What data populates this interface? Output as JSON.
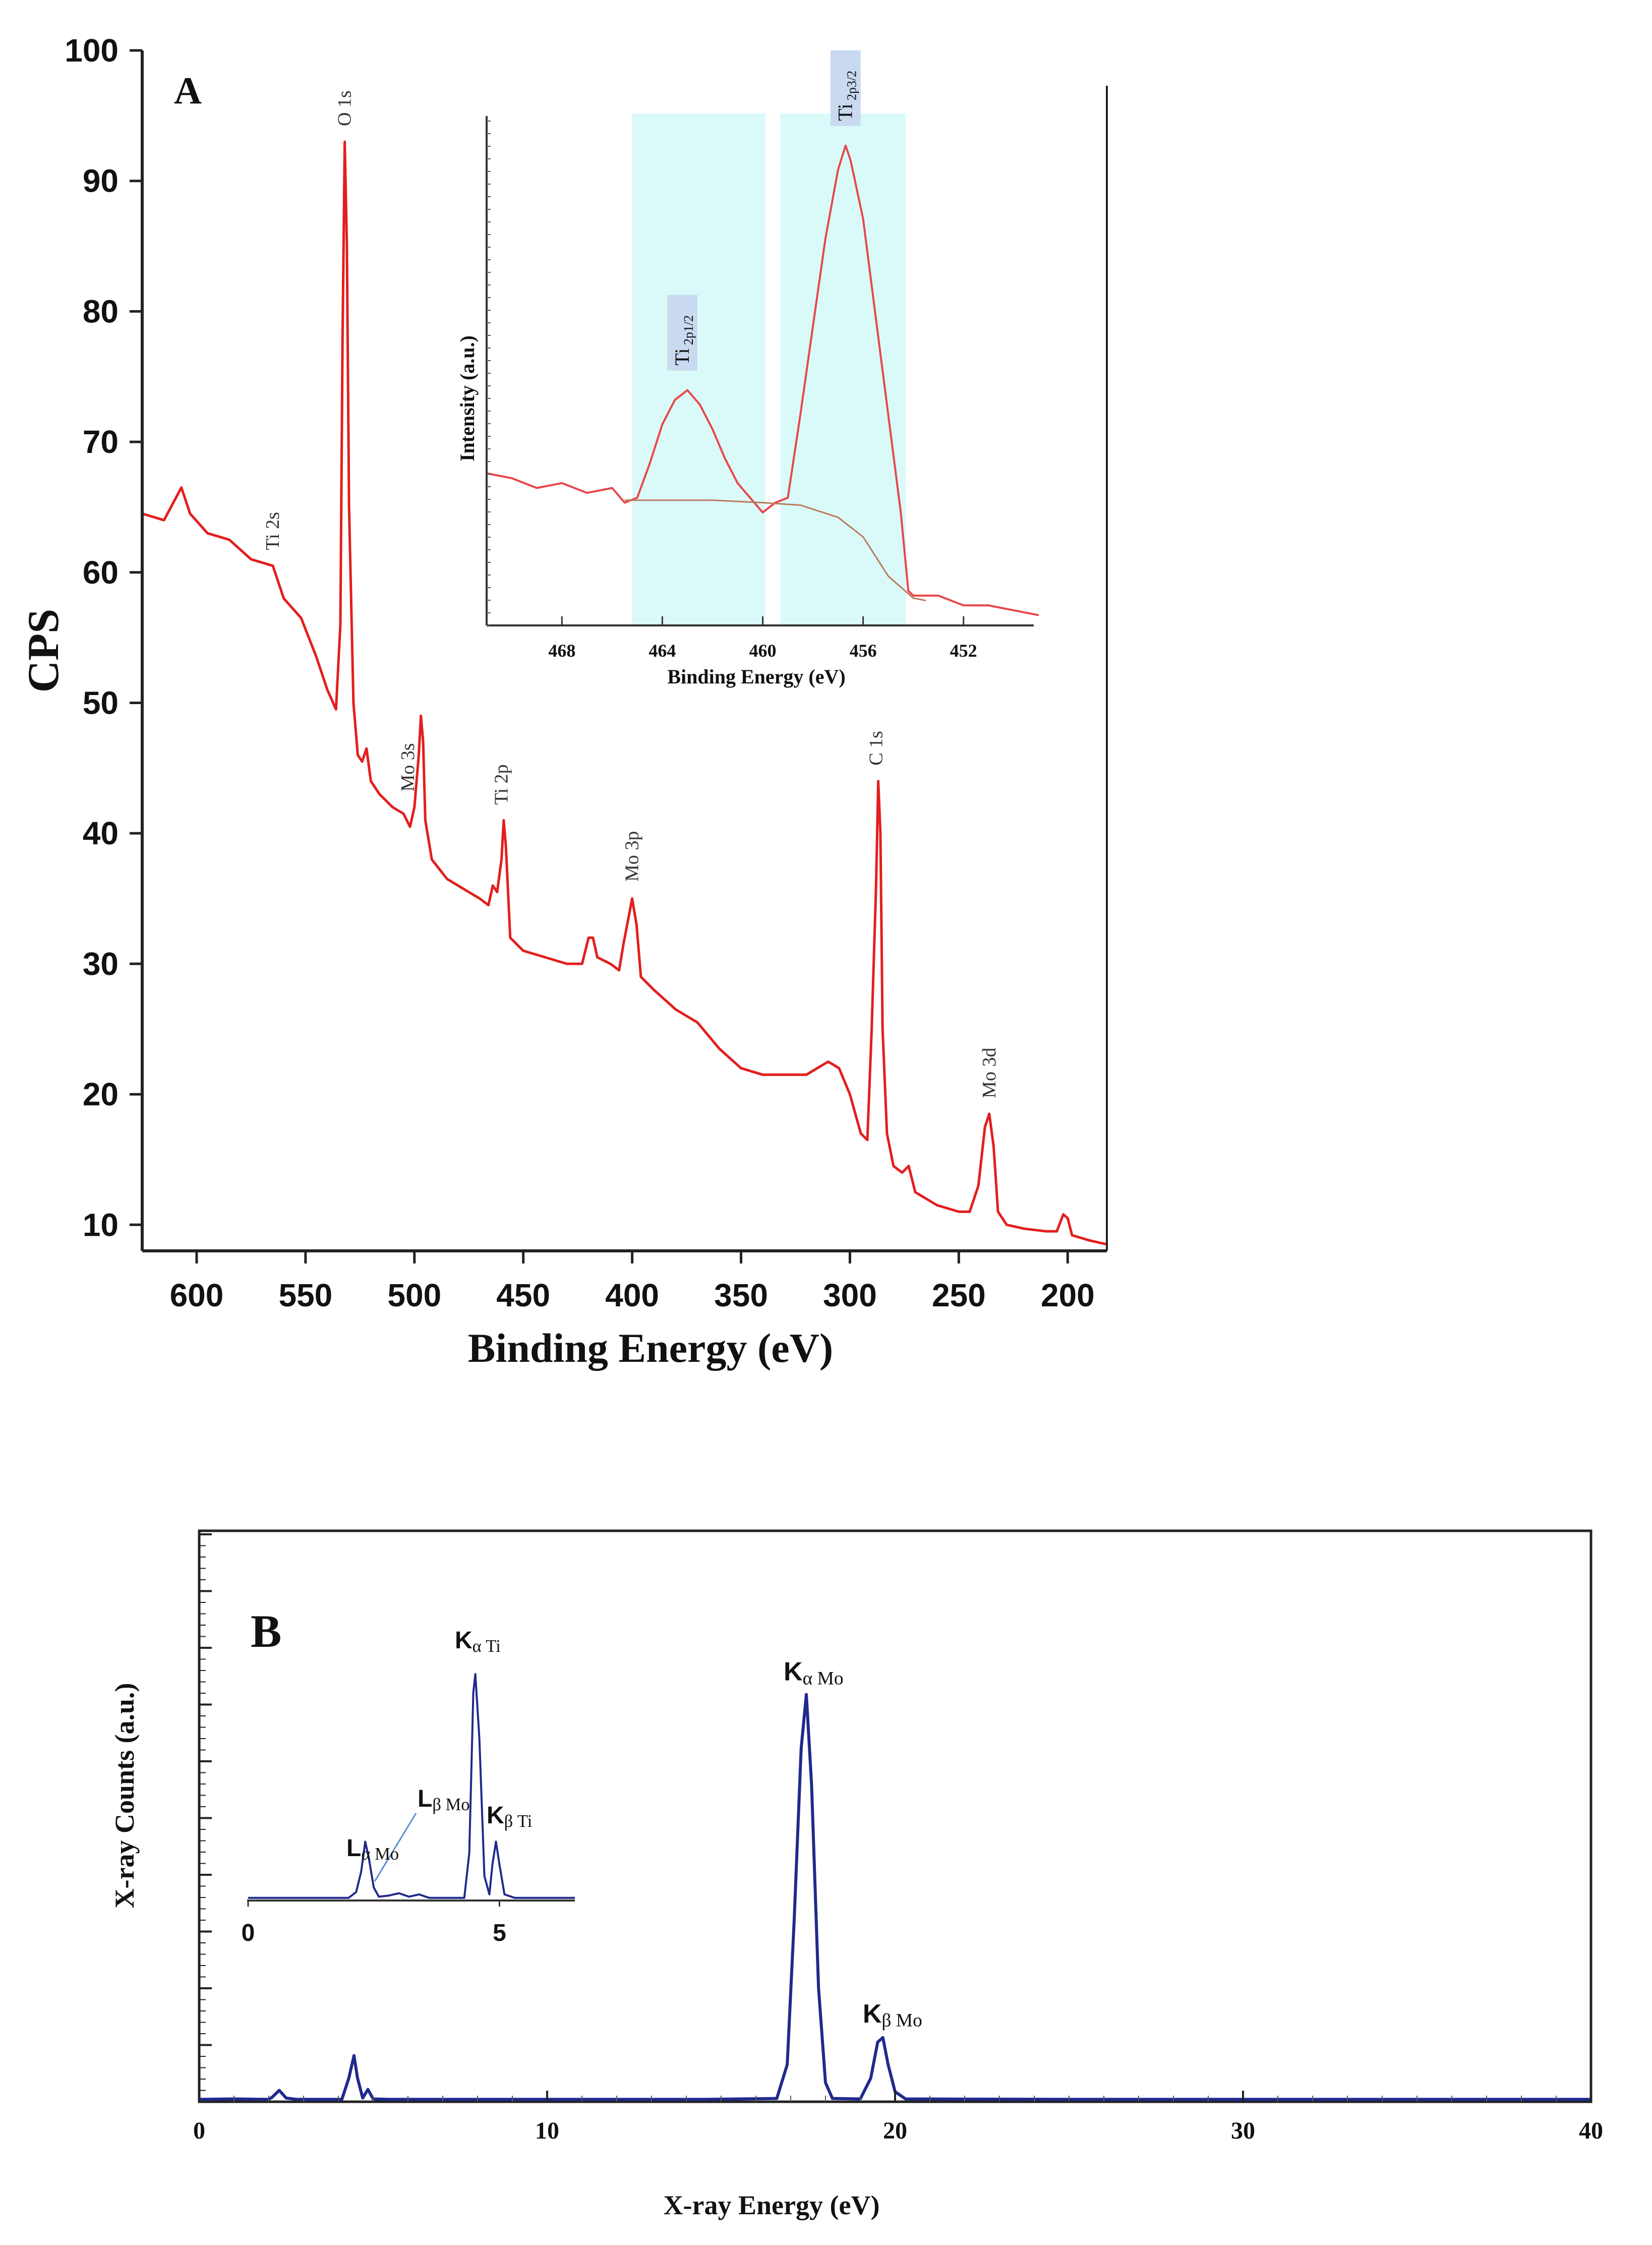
{
  "colors": {
    "xps_line": "#e31e1e",
    "inset_line": "#e8474a",
    "background_line": "#b97a5a",
    "highlight": "#dafaf9",
    "label_box": "#c9daf0",
    "eds_line": "#1f2a8c",
    "axis": "#222222"
  },
  "chart_data": [
    {
      "id": "A",
      "type": "line",
      "panel_label": "A",
      "xlabel": "Binding Energy (eV)",
      "ylabel": "CPS",
      "xlim": [
        625,
        182
      ],
      "ylim": [
        8,
        100
      ],
      "x_ticks": [
        600,
        550,
        500,
        450,
        400,
        350,
        300,
        250,
        200
      ],
      "y_ticks": [
        10,
        20,
        30,
        40,
        50,
        60,
        70,
        80,
        90,
        100
      ],
      "series": [
        {
          "name": "XPS survey",
          "points": [
            [
              625,
              64.5
            ],
            [
              615,
              64.0
            ],
            [
              607,
              66.5
            ],
            [
              603,
              64.5
            ],
            [
              595,
              63.0
            ],
            [
              585,
              62.5
            ],
            [
              575,
              61.0
            ],
            [
              565,
              60.5
            ],
            [
              560,
              58.0
            ],
            [
              552,
              56.5
            ],
            [
              545,
              53.5
            ],
            [
              540,
              51.0
            ],
            [
              536,
              49.5
            ],
            [
              534,
              56.0
            ],
            [
              533,
              78.0
            ],
            [
              532,
              93.0
            ],
            [
              531,
              85.0
            ],
            [
              530,
              65.0
            ],
            [
              528,
              50.0
            ],
            [
              526,
              46.0
            ],
            [
              524,
              45.5
            ],
            [
              522,
              46.5
            ],
            [
              520,
              44.0
            ],
            [
              516,
              43.0
            ],
            [
              510,
              42.0
            ],
            [
              505,
              41.5
            ],
            [
              502,
              40.5
            ],
            [
              500,
              42.0
            ],
            [
              498,
              46.0
            ],
            [
              497,
              49.0
            ],
            [
              496,
              47.0
            ],
            [
              495,
              41.0
            ],
            [
              492,
              38.0
            ],
            [
              485,
              36.5
            ],
            [
              480,
              36.0
            ],
            [
              475,
              35.5
            ],
            [
              470,
              35.0
            ],
            [
              466,
              34.5
            ],
            [
              464,
              36.0
            ],
            [
              462,
              35.5
            ],
            [
              460,
              38.0
            ],
            [
              459,
              41.0
            ],
            [
              458,
              39.0
            ],
            [
              456,
              32.0
            ],
            [
              450,
              31.0
            ],
            [
              440,
              30.5
            ],
            [
              430,
              30.0
            ],
            [
              423,
              30.0
            ],
            [
              420,
              32.0
            ],
            [
              418,
              32.0
            ],
            [
              416,
              30.5
            ],
            [
              410,
              30.0
            ],
            [
              406,
              29.5
            ],
            [
              404,
              31.5
            ],
            [
              400,
              35.0
            ],
            [
              398,
              33.0
            ],
            [
              396,
              29.0
            ],
            [
              390,
              28.0
            ],
            [
              380,
              26.5
            ],
            [
              370,
              25.5
            ],
            [
              360,
              23.5
            ],
            [
              350,
              22.0
            ],
            [
              340,
              21.5
            ],
            [
              330,
              21.5
            ],
            [
              320,
              21.5
            ],
            [
              315,
              22.0
            ],
            [
              310,
              22.5
            ],
            [
              305,
              22.0
            ],
            [
              300,
              20.0
            ],
            [
              295,
              17.0
            ],
            [
              292,
              16.5
            ],
            [
              290,
              25.0
            ],
            [
              288,
              36.0
            ],
            [
              287,
              44.0
            ],
            [
              286,
              40.0
            ],
            [
              285,
              25.0
            ],
            [
              283,
              17.0
            ],
            [
              280,
              14.5
            ],
            [
              276,
              14.0
            ],
            [
              273,
              14.5
            ],
            [
              270,
              12.5
            ],
            [
              260,
              11.5
            ],
            [
              250,
              11.0
            ],
            [
              245,
              11.0
            ],
            [
              241,
              13.0
            ],
            [
              238,
              17.5
            ],
            [
              236,
              18.5
            ],
            [
              234,
              16.0
            ],
            [
              232,
              11.0
            ],
            [
              228,
              10.0
            ],
            [
              220,
              9.7
            ],
            [
              210,
              9.5
            ],
            [
              205,
              9.5
            ],
            [
              202,
              10.8
            ],
            [
              200,
              10.5
            ],
            [
              198,
              9.2
            ],
            [
              190,
              8.8
            ],
            [
              182,
              8.5
            ]
          ]
        }
      ],
      "peak_labels": [
        {
          "text": "O 1s",
          "x": 532,
          "y": 94.2
        },
        {
          "text": "Ti 2s",
          "x": 565,
          "y": 61.7
        },
        {
          "text": "Mo 3s",
          "x": 503,
          "y": 43.2
        },
        {
          "text": "Ti 2p",
          "x": 460,
          "y": 42.2
        },
        {
          "text": "Mo 3p",
          "x": 400,
          "y": 36.3
        },
        {
          "text": "C 1s",
          "x": 288,
          "y": 45.2
        },
        {
          "text": "Mo 3d",
          "x": 236,
          "y": 19.7
        }
      ]
    },
    {
      "id": "A-inset",
      "type": "line",
      "xlabel": "Binding Energy (eV)",
      "ylabel": "Intensity (a.u.)",
      "xlim": [
        471,
        449
      ],
      "ylim": [
        0,
        100
      ],
      "x_ticks": [
        468,
        464,
        460,
        456,
        452
      ],
      "highlight_ranges": [
        [
          465.2,
          459.9
        ],
        [
          459.3,
          454.3
        ]
      ],
      "series": [
        {
          "name": "Ti 2p spectrum",
          "points": [
            [
              471,
              28
            ],
            [
              470,
              27
            ],
            [
              469,
              25
            ],
            [
              468,
              26
            ],
            [
              467,
              24
            ],
            [
              466,
              25
            ],
            [
              465.5,
              22
            ],
            [
              465,
              23
            ],
            [
              464.5,
              30
            ],
            [
              464,
              38
            ],
            [
              463.5,
              43
            ],
            [
              463,
              45
            ],
            [
              462.5,
              42
            ],
            [
              462,
              37
            ],
            [
              461.5,
              31
            ],
            [
              461,
              26
            ],
            [
              460.5,
              23
            ],
            [
              460,
              20
            ],
            [
              459.5,
              22
            ],
            [
              459,
              23
            ],
            [
              458.5,
              40
            ],
            [
              458,
              58
            ],
            [
              457.5,
              76
            ],
            [
              457,
              90
            ],
            [
              456.7,
              95
            ],
            [
              456.5,
              92
            ],
            [
              456,
              80
            ],
            [
              455.5,
              60
            ],
            [
              455,
              40
            ],
            [
              454.5,
              20
            ],
            [
              454.2,
              4
            ],
            [
              454,
              3
            ],
            [
              453,
              3
            ],
            [
              452,
              1
            ],
            [
              451,
              1
            ],
            [
              450,
              0
            ],
            [
              449,
              -1
            ]
          ]
        },
        {
          "name": "Background",
          "points": [
            [
              465.5,
              22.5
            ],
            [
              462,
              22.5
            ],
            [
              460,
              22
            ],
            [
              458.5,
              21.5
            ],
            [
              457,
              19
            ],
            [
              456,
              15
            ],
            [
              455,
              7
            ],
            [
              454,
              2.5
            ],
            [
              453.5,
              2
            ]
          ]
        }
      ],
      "peak_labels": [
        {
          "text": "Ti 2p1/2",
          "main": "Ti",
          "sub": "2p1/2",
          "x": 463.2,
          "y": 49
        },
        {
          "text": "Ti 2p3/2",
          "main": "Ti",
          "sub": "2p3/2",
          "x": 456.7,
          "y": 99
        }
      ]
    },
    {
      "id": "B",
      "type": "line",
      "panel_label": "B",
      "xlabel": "X-ray Energy (eV)",
      "ylabel": "X-ray Counts (a.u.)",
      "xlim": [
        0,
        40
      ],
      "ylim": [
        0,
        100
      ],
      "x_ticks": [
        0,
        10,
        20,
        30,
        40
      ],
      "series": [
        {
          "name": "EDS spectrum",
          "points": [
            [
              0,
              0.3
            ],
            [
              1,
              0.4
            ],
            [
              2,
              0.3
            ],
            [
              2.1,
              0.8
            ],
            [
              2.3,
              2.3
            ],
            [
              2.5,
              0.6
            ],
            [
              2.8,
              0.3
            ],
            [
              4.1,
              0.3
            ],
            [
              4.3,
              5
            ],
            [
              4.45,
              10
            ],
            [
              4.55,
              5
            ],
            [
              4.7,
              0.6
            ],
            [
              4.85,
              2.5
            ],
            [
              5.0,
              0.4
            ],
            [
              5.5,
              0.3
            ],
            [
              10,
              0.3
            ],
            [
              14.5,
              0.3
            ],
            [
              16.6,
              0.5
            ],
            [
              16.9,
              8
            ],
            [
              17.1,
              40
            ],
            [
              17.3,
              78
            ],
            [
              17.45,
              90
            ],
            [
              17.6,
              70
            ],
            [
              17.8,
              25
            ],
            [
              18.0,
              4
            ],
            [
              18.2,
              0.5
            ],
            [
              19.0,
              0.4
            ],
            [
              19.3,
              5
            ],
            [
              19.5,
              13
            ],
            [
              19.65,
              14
            ],
            [
              19.8,
              8
            ],
            [
              20.0,
              2
            ],
            [
              20.3,
              0.4
            ],
            [
              25,
              0.3
            ],
            [
              30,
              0.3
            ],
            [
              35,
              0.3
            ],
            [
              40,
              0.3
            ]
          ]
        }
      ],
      "peak_labels": [
        {
          "text": "Kα Mo",
          "main": "K",
          "greek": "α",
          "element": "Mo",
          "x": 17.45,
          "y": 92
        }
      ],
      "peak_labels_b": [
        {
          "text": "Kβ Mo",
          "main": "K",
          "greek": "β",
          "element": "Mo",
          "x": 19.65,
          "y": 16
        }
      ]
    },
    {
      "id": "B-inset",
      "type": "line",
      "xlim": [
        0,
        6.5
      ],
      "ylim": [
        0,
        100
      ],
      "x_ticks": [
        0,
        5
      ],
      "series": [
        {
          "name": "EDS low energy",
          "points": [
            [
              0,
              0.5
            ],
            [
              2.0,
              0.5
            ],
            [
              2.15,
              3
            ],
            [
              2.25,
              12
            ],
            [
              2.33,
              25
            ],
            [
              2.4,
              18
            ],
            [
              2.5,
              5
            ],
            [
              2.6,
              1
            ],
            [
              2.8,
              1.5
            ],
            [
              3.0,
              2.5
            ],
            [
              3.2,
              1
            ],
            [
              3.4,
              2
            ],
            [
              3.6,
              0.5
            ],
            [
              4.3,
              0.5
            ],
            [
              4.4,
              20
            ],
            [
              4.48,
              90
            ],
            [
              4.52,
              98
            ],
            [
              4.6,
              70
            ],
            [
              4.7,
              10
            ],
            [
              4.8,
              2
            ],
            [
              4.86,
              15
            ],
            [
              4.93,
              25
            ],
            [
              5.0,
              15
            ],
            [
              5.1,
              2
            ],
            [
              5.3,
              0.5
            ],
            [
              6.5,
              0.5
            ]
          ]
        }
      ],
      "peak_labels": [
        {
          "text": "Lα Mo",
          "main": "L",
          "greek": "α",
          "element": "Mo"
        },
        {
          "text": "Lβ Mo",
          "main": "L",
          "greek": "β",
          "element": "Mo"
        },
        {
          "text": "Kα Ti",
          "main": "K",
          "greek": "α",
          "element": "Ti"
        },
        {
          "text": "Kβ Ti",
          "main": "K",
          "greek": "β",
          "element": "Ti"
        }
      ]
    }
  ]
}
